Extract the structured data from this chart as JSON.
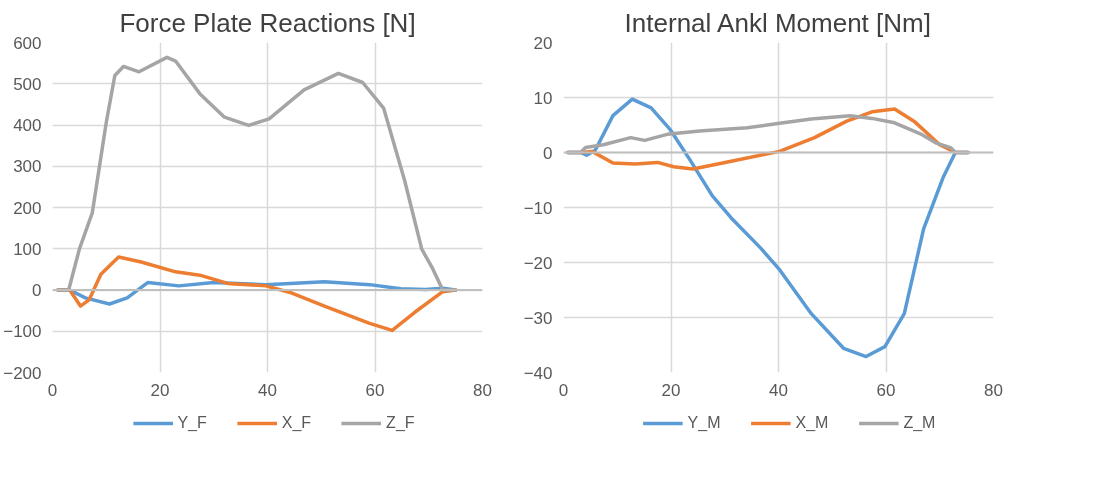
{
  "chart_data": [
    {
      "type": "line",
      "title": "Force Plate Reactions [N]",
      "xlim": [
        0,
        80
      ],
      "xticks": [
        0,
        20,
        40,
        60,
        80
      ],
      "ylim": [
        -200,
        600
      ],
      "yticks": [
        -200,
        -100,
        0,
        100,
        200,
        300,
        400,
        500,
        600
      ],
      "grid": true,
      "legend": "bottom",
      "line_style": "solid",
      "series": [
        {
          "name": "Y_F",
          "color": "#5b9bd5",
          "x": [
            1,
            3.2,
            6.1,
            10.6,
            13.9,
            17.7,
            23.5,
            30,
            39.7,
            50.6,
            59,
            64.8,
            69.4,
            72.6,
            75
          ],
          "values": [
            0,
            0,
            -19,
            -34,
            -19,
            18,
            10,
            18,
            13,
            20,
            13,
            3,
            1,
            4,
            0
          ]
        },
        {
          "name": "X_F",
          "color": "#ed7d31",
          "x": [
            1,
            3.2,
            5.2,
            6.8,
            9,
            12.3,
            16.5,
            22.9,
            27.4,
            32.6,
            39.7,
            44.2,
            50.6,
            59,
            63.2,
            67.4,
            72.6,
            75
          ],
          "values": [
            0,
            0,
            -39,
            -24,
            38,
            80,
            68,
            44,
            36,
            16,
            10,
            -6,
            -39,
            -81,
            -98,
            -54,
            -4,
            0
          ]
        },
        {
          "name": "Z_F",
          "color": "#a5a5a5",
          "x": [
            1,
            3,
            5,
            7.4,
            10,
            11.6,
            13.2,
            16.1,
            21.3,
            22.9,
            27.4,
            32,
            36.5,
            40.3,
            46.8,
            53.2,
            57.7,
            61.6,
            65.5,
            68.7,
            70.6,
            72.6,
            75
          ],
          "values": [
            0,
            0,
            99,
            187,
            406,
            520,
            542,
            529,
            564,
            555,
            476,
            419,
            399,
            415,
            485,
            525,
            503,
            441,
            266,
            99,
            55,
            0,
            0
          ]
        }
      ]
    },
    {
      "type": "line",
      "title": "Internal Ankl Moment [Nm]",
      "xlim": [
        0,
        80
      ],
      "xticks": [
        0,
        20,
        40,
        60,
        80
      ],
      "ylim": [
        -40,
        20
      ],
      "yticks": [
        -40,
        -30,
        -20,
        -10,
        0,
        10,
        20
      ],
      "grid": true,
      "legend": "bottom",
      "line_style": "solid",
      "series": [
        {
          "name": "Y_M",
          "color": "#5b9bd5",
          "x": [
            0.8,
            3.2,
            4.3,
            5.9,
            9.2,
            12.8,
            16.3,
            19.9,
            23.5,
            27.7,
            31.2,
            36.6,
            40.2,
            46.1,
            52.1,
            56.3,
            59.8,
            63.4,
            67,
            70.6,
            72.9,
            75.3
          ],
          "values": [
            0,
            0,
            -0.5,
            0.4,
            6.7,
            9.7,
            8.1,
            4.1,
            -1.3,
            -7.9,
            -11.9,
            -17.3,
            -21.3,
            -29.3,
            -35.6,
            -37.1,
            -35.3,
            -29.3,
            -13.9,
            -4.6,
            0,
            0
          ]
        },
        {
          "name": "X_M",
          "color": "#ed7d31",
          "x": [
            0.8,
            3.2,
            5.3,
            9.2,
            13.3,
            17.5,
            20.5,
            24.1,
            31.2,
            40.2,
            46.7,
            52.7,
            57.4,
            61.6,
            65.2,
            70,
            72.9,
            75.3
          ],
          "values": [
            0,
            0,
            0.2,
            -1.9,
            -2.1,
            -1.8,
            -2.6,
            -3,
            -1.6,
            0.2,
            2.7,
            5.7,
            7.4,
            7.9,
            5.7,
            1.4,
            0,
            0
          ]
        },
        {
          "name": "Z_M",
          "color": "#a5a5a5",
          "x": [
            0.8,
            3.2,
            4.1,
            7.4,
            12.5,
            15.1,
            19.3,
            25.3,
            34.2,
            40.2,
            46.1,
            53.3,
            57.4,
            61.6,
            66.4,
            69.4,
            72,
            72.9,
            75.3
          ],
          "values": [
            0,
            0,
            0.9,
            1.4,
            2.7,
            2.2,
            3.3,
            3.9,
            4.5,
            5.3,
            6.1,
            6.7,
            6.2,
            5.4,
            3.4,
            1.7,
            0.9,
            0,
            0
          ]
        }
      ]
    }
  ]
}
